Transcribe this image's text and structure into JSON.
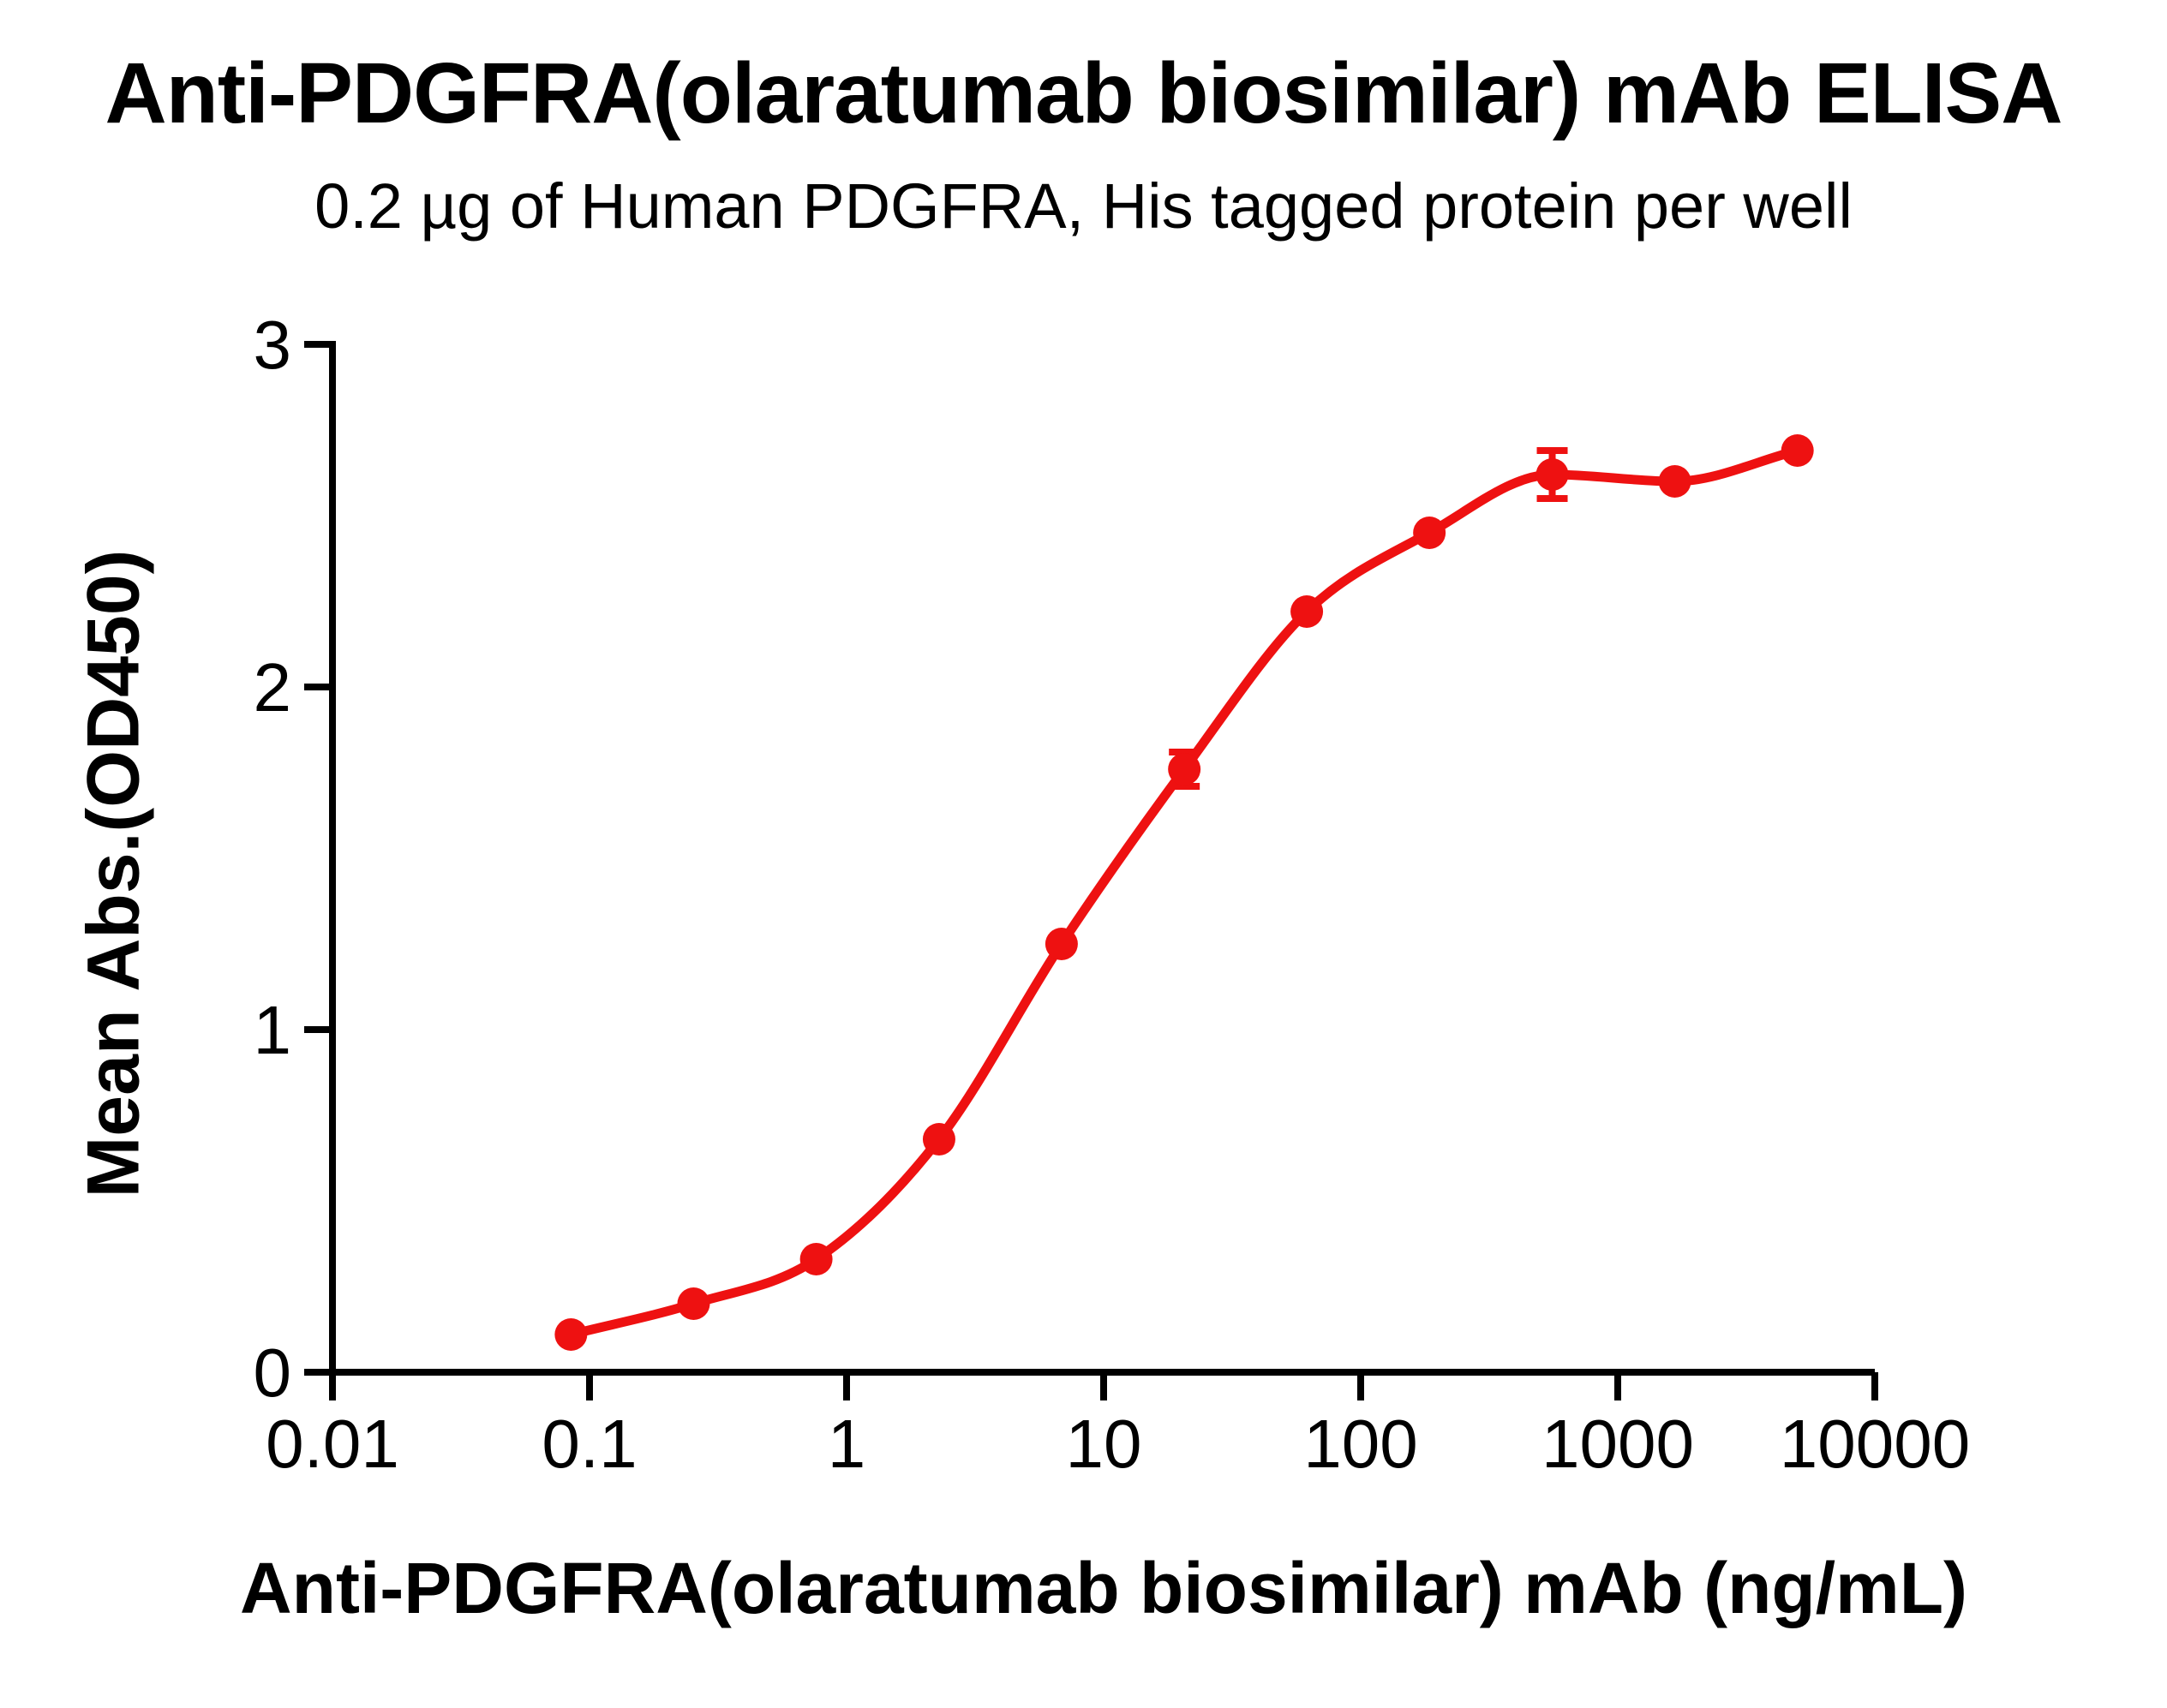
{
  "figure": {
    "title": "Anti-PDGFRA(olaratumab biosimilar) mAb ELISA",
    "subtitle": "0.2 µg of Human PDGFRA, His tagged protein per well",
    "y_axis_label": "Mean Abs.(OD450)",
    "x_axis_label": "Anti-PDGFRA(olaratumab biosimilar) mAb (ng/mL)"
  },
  "chart_data": {
    "type": "scatter",
    "curve_style": "sigmoidal dose-response fit line through points",
    "x_scale": "log10",
    "title": "Anti-PDGFRA(olaratumab biosimilar) mAb ELISA",
    "subtitle": "0.2 µg of Human PDGFRA, His tagged protein per well",
    "xlabel": "Anti-PDGFRA(olaratumab biosimilar) mAb (ng/mL)",
    "ylabel": "Mean Abs.(OD450)",
    "xlim": [
      0.01,
      10000
    ],
    "ylim": [
      0,
      3
    ],
    "grid": false,
    "legend": false,
    "x_ticks": [
      {
        "value": 0.01,
        "label": "0.01"
      },
      {
        "value": 0.1,
        "label": "0.1"
      },
      {
        "value": 1,
        "label": "1"
      },
      {
        "value": 10,
        "label": "10"
      },
      {
        "value": 100,
        "label": "100"
      },
      {
        "value": 1000,
        "label": "1000"
      },
      {
        "value": 10000,
        "label": "10000"
      }
    ],
    "y_ticks": [
      {
        "value": 0,
        "label": "0"
      },
      {
        "value": 1,
        "label": "1"
      },
      {
        "value": 2,
        "label": "2"
      },
      {
        "value": 3,
        "label": "3"
      }
    ],
    "series": [
      {
        "name": "Anti-PDGFRA(olaratumab biosimilar) mAb",
        "color": "#ee1111",
        "marker": "circle",
        "points": [
          {
            "x": 0.0847,
            "y": 0.11
          },
          {
            "x": 0.254,
            "y": 0.2
          },
          {
            "x": 0.762,
            "y": 0.33
          },
          {
            "x": 2.29,
            "y": 0.68
          },
          {
            "x": 6.86,
            "y": 1.25
          },
          {
            "x": 20.6,
            "y": 1.76,
            "y_err": 0.05
          },
          {
            "x": 61.7,
            "y": 2.22
          },
          {
            "x": 185,
            "y": 2.45
          },
          {
            "x": 556,
            "y": 2.62,
            "y_err": 0.07
          },
          {
            "x": 1667,
            "y": 2.6
          },
          {
            "x": 5000,
            "y": 2.69
          }
        ]
      }
    ]
  }
}
